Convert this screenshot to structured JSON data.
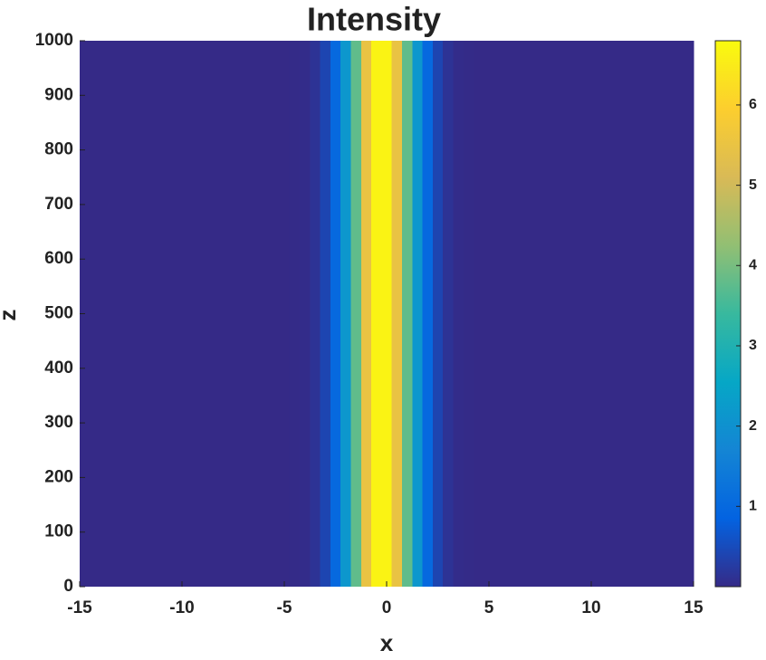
{
  "chart_data": {
    "type": "heatmap",
    "title": "Intensity",
    "xlabel": "x",
    "ylabel": "z",
    "x": [
      -15,
      -5,
      -4.5,
      -4,
      -3.5,
      -3,
      -2.5,
      -2,
      -1.5,
      -1,
      -0.5,
      0,
      0.5,
      1,
      1.5,
      2,
      2.5,
      3,
      3.5,
      4,
      4.5,
      15
    ],
    "values": [
      0,
      0,
      0.01,
      0.03,
      0.13,
      0.4,
      1.01,
      2.15,
      3.78,
      5.5,
      6.64,
      6.64,
      5.5,
      3.78,
      2.15,
      1.01,
      0.4,
      0.13,
      0.03,
      0.01,
      0,
      0
    ],
    "xlim": [
      -15,
      15
    ],
    "ylim": [
      0,
      1000
    ],
    "xticks": [
      -15,
      -10,
      -5,
      0,
      5,
      10,
      15
    ],
    "yticks": [
      0,
      100,
      200,
      300,
      400,
      500,
      600,
      700,
      800,
      900,
      1000
    ],
    "clim": [
      0,
      6.8
    ],
    "cticks": [
      1,
      2,
      3,
      4,
      5,
      6
    ],
    "colormap": [
      "#352a87",
      "#0363e1",
      "#1485d4",
      "#06a7c6",
      "#38b99e",
      "#92bf73",
      "#d9ba56",
      "#fcce2e",
      "#f9fb0e"
    ]
  }
}
